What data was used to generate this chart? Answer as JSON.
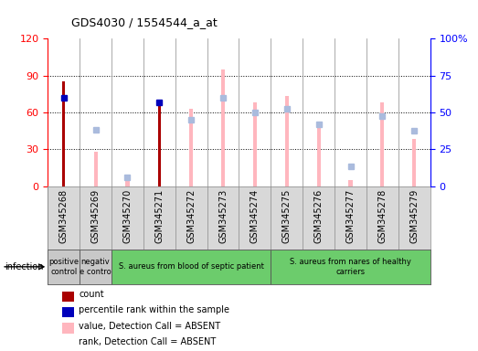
{
  "title": "GDS4030 / 1554544_a_at",
  "samples": [
    "GSM345268",
    "GSM345269",
    "GSM345270",
    "GSM345271",
    "GSM345272",
    "GSM345273",
    "GSM345274",
    "GSM345275",
    "GSM345276",
    "GSM345277",
    "GSM345278",
    "GSM345279"
  ],
  "count_values": [
    85,
    0,
    0,
    65,
    0,
    0,
    0,
    0,
    0,
    0,
    0,
    0
  ],
  "percentile_values": [
    72,
    0,
    0,
    68,
    0,
    0,
    0,
    0,
    0,
    0,
    0,
    0
  ],
  "absent_value_bars": [
    0,
    28,
    5,
    0,
    63,
    95,
    68,
    73,
    48,
    5,
    68,
    38
  ],
  "absent_rank_vals": [
    0,
    46,
    7,
    0,
    54,
    72,
    60,
    63,
    50,
    16,
    57,
    45
  ],
  "ylim_left": [
    0,
    120
  ],
  "ylim_right": [
    0,
    100
  ],
  "yticks_left": [
    0,
    30,
    60,
    90,
    120
  ],
  "yticks_right": [
    0,
    25,
    50,
    75,
    100
  ],
  "ytick_right_labels": [
    "0",
    "25",
    "50",
    "75",
    "100%"
  ],
  "group_spans": [
    {
      "start": 0,
      "end": 1,
      "label": "positive\ncontrol",
      "color": "#c8c8c8"
    },
    {
      "start": 1,
      "end": 2,
      "label": "negativ\ne contro",
      "color": "#c8c8c8"
    },
    {
      "start": 2,
      "end": 7,
      "label": "S. aureus from blood of septic patient",
      "color": "#6ccc6c"
    },
    {
      "start": 7,
      "end": 12,
      "label": "S. aureus from nares of healthy\ncarriers",
      "color": "#6ccc6c"
    }
  ],
  "count_color": "#aa0000",
  "percentile_color": "#0000bb",
  "absent_value_color": "#ffb6be",
  "absent_rank_color": "#aabbdd",
  "bar_bg_color": "#d8d8d8",
  "infection_label": "infection",
  "legend_items": [
    {
      "color": "#aa0000",
      "label": "count"
    },
    {
      "color": "#0000bb",
      "label": "percentile rank within the sample"
    },
    {
      "color": "#ffb6be",
      "label": "value, Detection Call = ABSENT"
    },
    {
      "color": "#aabbdd",
      "label": "rank, Detection Call = ABSENT"
    }
  ]
}
